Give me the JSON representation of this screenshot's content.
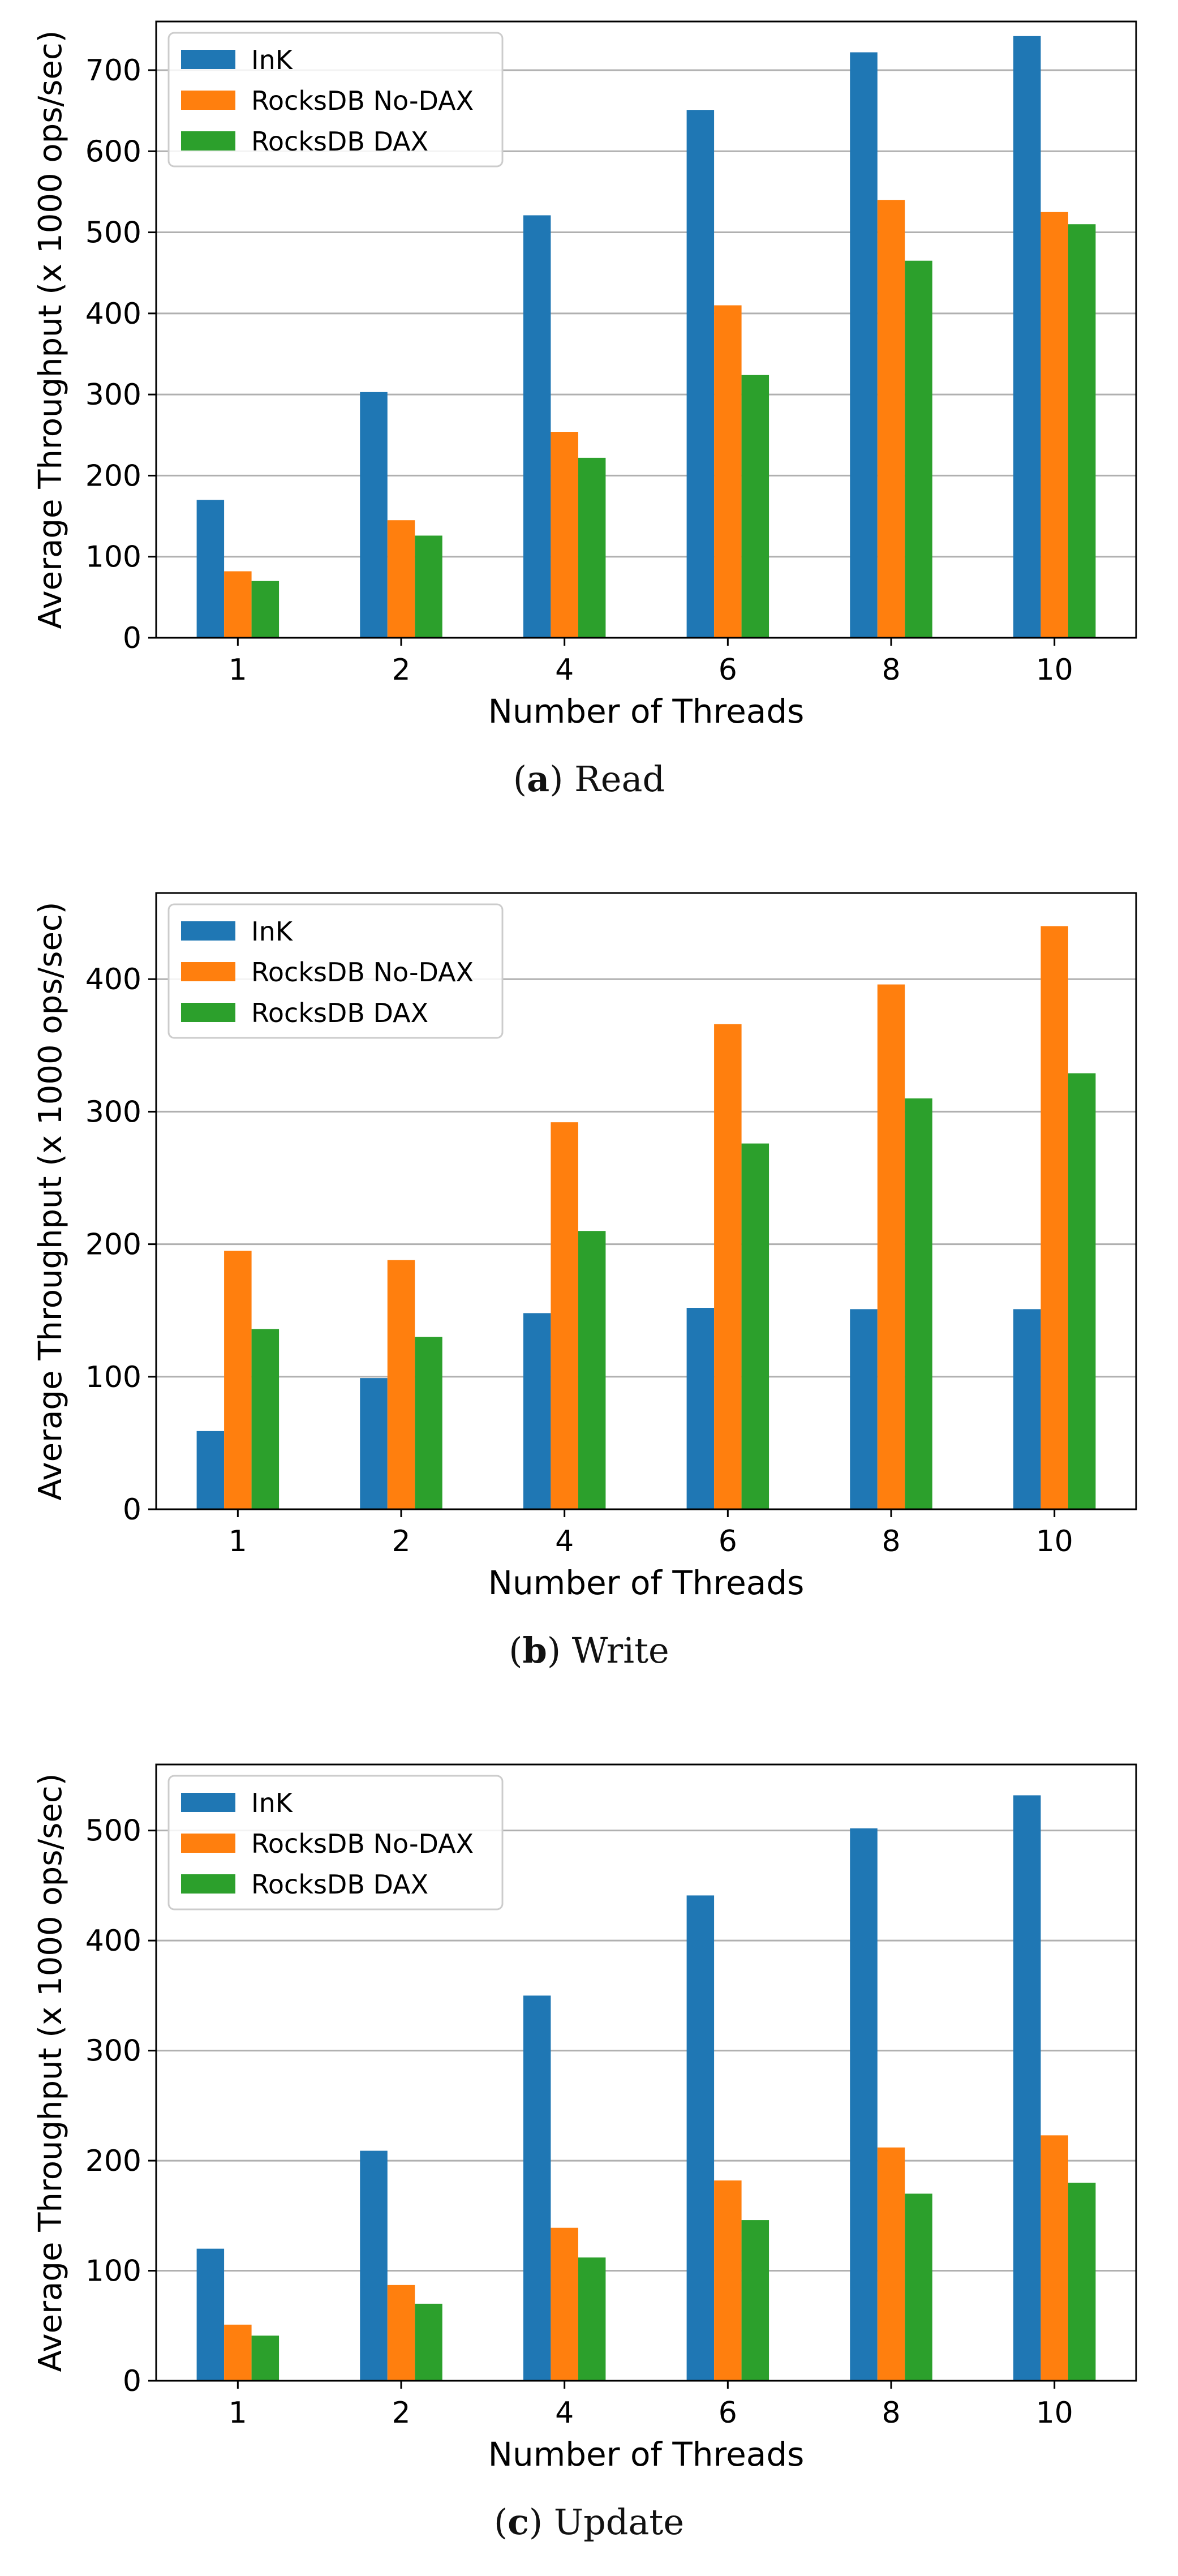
{
  "colors": {
    "ink": "#1f77b4",
    "nodax": "#ff7f0e",
    "dax": "#2ca02c"
  },
  "chart_data": [
    {
      "type": "bar",
      "caption_letter": "a",
      "caption_text": "Read",
      "xlabel": "Number of Threads",
      "ylabel": "Average Throughput (x 1000 ops/sec)",
      "categories": [
        "1",
        "2",
        "4",
        "6",
        "8",
        "10"
      ],
      "ylim": [
        0,
        760
      ],
      "yticks": [
        0,
        100,
        200,
        300,
        400,
        500,
        600,
        700
      ],
      "grid": "horizontal",
      "legend_position": "top-left",
      "series": [
        {
          "name": "InK",
          "values": [
            170,
            303,
            521,
            651,
            722,
            742
          ]
        },
        {
          "name": "RocksDB No-DAX",
          "values": [
            82,
            145,
            254,
            410,
            540,
            525
          ]
        },
        {
          "name": "RocksDB DAX",
          "values": [
            70,
            126,
            222,
            324,
            465,
            510
          ]
        }
      ]
    },
    {
      "type": "bar",
      "caption_letter": "b",
      "caption_text": "Write",
      "xlabel": "Number of Threads",
      "ylabel": "Average Throughput (x 1000 ops/sec)",
      "categories": [
        "1",
        "2",
        "4",
        "6",
        "8",
        "10"
      ],
      "ylim": [
        0,
        465
      ],
      "yticks": [
        0,
        100,
        200,
        300,
        400
      ],
      "grid": "horizontal",
      "legend_position": "top-left",
      "series": [
        {
          "name": "InK",
          "values": [
            59,
            99,
            148,
            152,
            151,
            151
          ]
        },
        {
          "name": "RocksDB No-DAX",
          "values": [
            195,
            188,
            292,
            366,
            396,
            440
          ]
        },
        {
          "name": "RocksDB DAX",
          "values": [
            136,
            130,
            210,
            276,
            310,
            329
          ]
        }
      ]
    },
    {
      "type": "bar",
      "caption_letter": "c",
      "caption_text": "Update",
      "xlabel": "Number of Threads",
      "ylabel": "Average Throughput (x 1000 ops/sec)",
      "categories": [
        "1",
        "2",
        "4",
        "6",
        "8",
        "10"
      ],
      "ylim": [
        0,
        560
      ],
      "yticks": [
        0,
        100,
        200,
        300,
        400,
        500
      ],
      "grid": "horizontal",
      "legend_position": "top-left",
      "series": [
        {
          "name": "InK",
          "values": [
            120,
            209,
            350,
            441,
            502,
            532
          ]
        },
        {
          "name": "RocksDB No-DAX",
          "values": [
            51,
            87,
            139,
            182,
            212,
            223
          ]
        },
        {
          "name": "RocksDB DAX",
          "values": [
            41,
            70,
            112,
            146,
            170,
            180
          ]
        }
      ]
    }
  ]
}
